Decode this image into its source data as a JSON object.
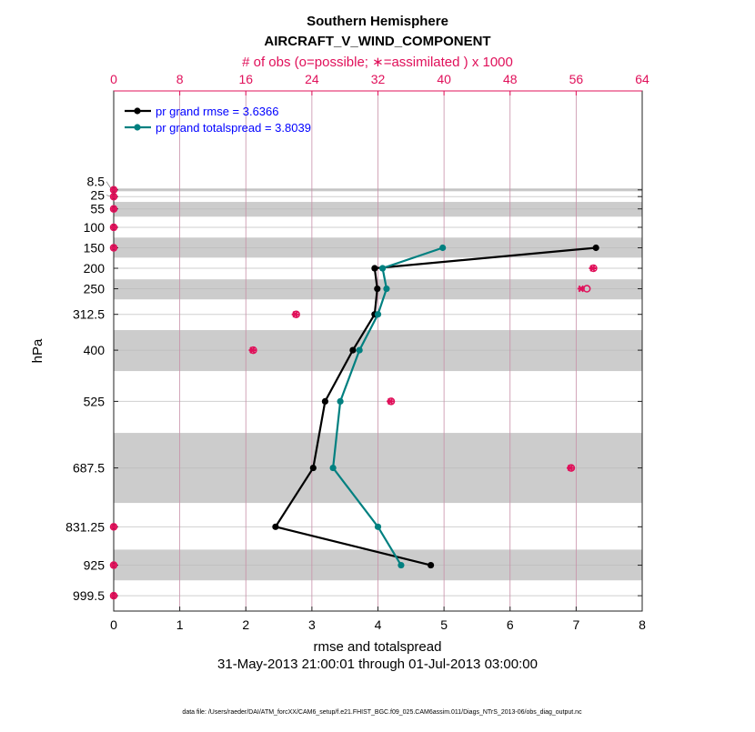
{
  "chart_data": {
    "type": "line",
    "title": "Southern Hemisphere",
    "subtitle": "AIRCRAFT_V_WIND_COMPONENT",
    "xlabel": "rmse and totalspread",
    "x2label": "# of obs (o=possible; ∗=assimilated ) x 1000",
    "ylabel": "hPa",
    "date_range": "31-May-2013 21:00:01 through 01-Jul-2013 03:00:00",
    "footer": "data file: /Users/raeder/DAI/ATM_forcXX/CAM6_setup/f.e21.FHIST_BGC.f09_025.CAM6assim.011/Diags_NTrS_2013-06/obs_diag_output.nc",
    "xlim": [
      0,
      8
    ],
    "x2lim": [
      0,
      64
    ],
    "ylim": [
      1037,
      -233
    ],
    "y_reversed": true,
    "xticks": [
      0,
      1,
      2,
      3,
      4,
      5,
      6,
      7,
      8
    ],
    "x2ticks": [
      0,
      8,
      16,
      24,
      32,
      40,
      48,
      56,
      64
    ],
    "levels": [
      8.5,
      25,
      55,
      100,
      150,
      200,
      250,
      312.5,
      400,
      525,
      687.5,
      831.25,
      925,
      999.5
    ],
    "level_labels": [
      "8.5",
      "25",
      "55",
      "100",
      "150",
      "200",
      "250",
      "312.5",
      "400",
      "525",
      "687.5",
      "831.25",
      "925",
      "999.5"
    ],
    "shaded_bands": [
      [
        5,
        12
      ],
      [
        38,
        74
      ],
      [
        125,
        174
      ],
      [
        227,
        276
      ],
      [
        351,
        451
      ],
      [
        602,
        773
      ],
      [
        887,
        962
      ]
    ],
    "legend_placement": "top-left",
    "series": [
      {
        "name": "pr grand rmse = 3.6366",
        "color": "#000000",
        "levels": [
          150,
          200,
          250,
          312.5,
          400,
          525,
          687.5,
          831.25,
          925
        ],
        "values": [
          7.3,
          3.95,
          3.99,
          3.95,
          3.62,
          3.2,
          3.02,
          2.45,
          4.8
        ]
      },
      {
        "name": "pr grand totalspread = 3.8039",
        "color": "#008080",
        "levels": [
          150,
          200,
          250,
          312.5,
          400,
          525,
          687.5,
          831.25,
          925
        ],
        "values": [
          4.98,
          4.07,
          4.13,
          4.0,
          3.72,
          3.43,
          3.32,
          4.0,
          4.35
        ]
      }
    ],
    "obs": {
      "color": "#e0105a",
      "levels": [
        8.5,
        25,
        55,
        100,
        150,
        200,
        250,
        312.5,
        400,
        525,
        687.5,
        831.25,
        925,
        999.5
      ],
      "possible": [
        0,
        0,
        0,
        0,
        0,
        58.1,
        57.3,
        22.1,
        16.9,
        33.6,
        55.4,
        0,
        0,
        0
      ],
      "assimilated": [
        0,
        0,
        0,
        0,
        0,
        58.0,
        56.6,
        22.0,
        16.8,
        33.5,
        55.3,
        0,
        0,
        0
      ]
    },
    "legend_text_color": "#0000ff"
  }
}
